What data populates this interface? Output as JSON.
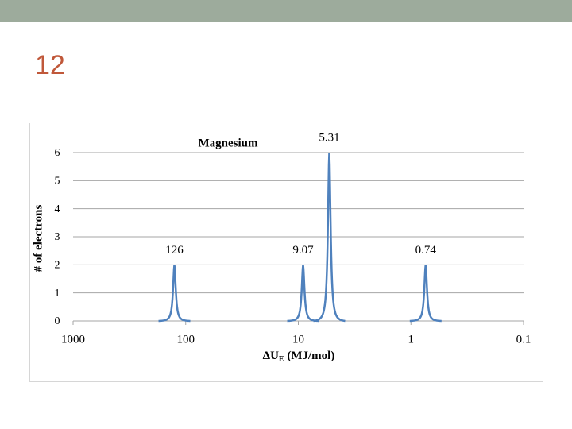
{
  "slide_number": "12",
  "chart_data": {
    "type": "peaks",
    "title": "Magnesium",
    "y_label": "# of electrons",
    "x_label": [
      "ΔU",
      "E",
      " (MJ/mol)"
    ],
    "x": [
      126,
      9.07,
      5.31,
      0.74
    ],
    "values": [
      2,
      2,
      6,
      2
    ],
    "color": "#4f81bd",
    "xlim": [
      1000,
      0.1
    ],
    "xticks": [
      1000,
      100,
      10,
      1,
      0.1
    ],
    "xscale": "log",
    "ylim": [
      0,
      6
    ],
    "yticks": [
      0,
      1,
      2,
      3,
      4,
      5,
      6
    ],
    "grid": true
  }
}
